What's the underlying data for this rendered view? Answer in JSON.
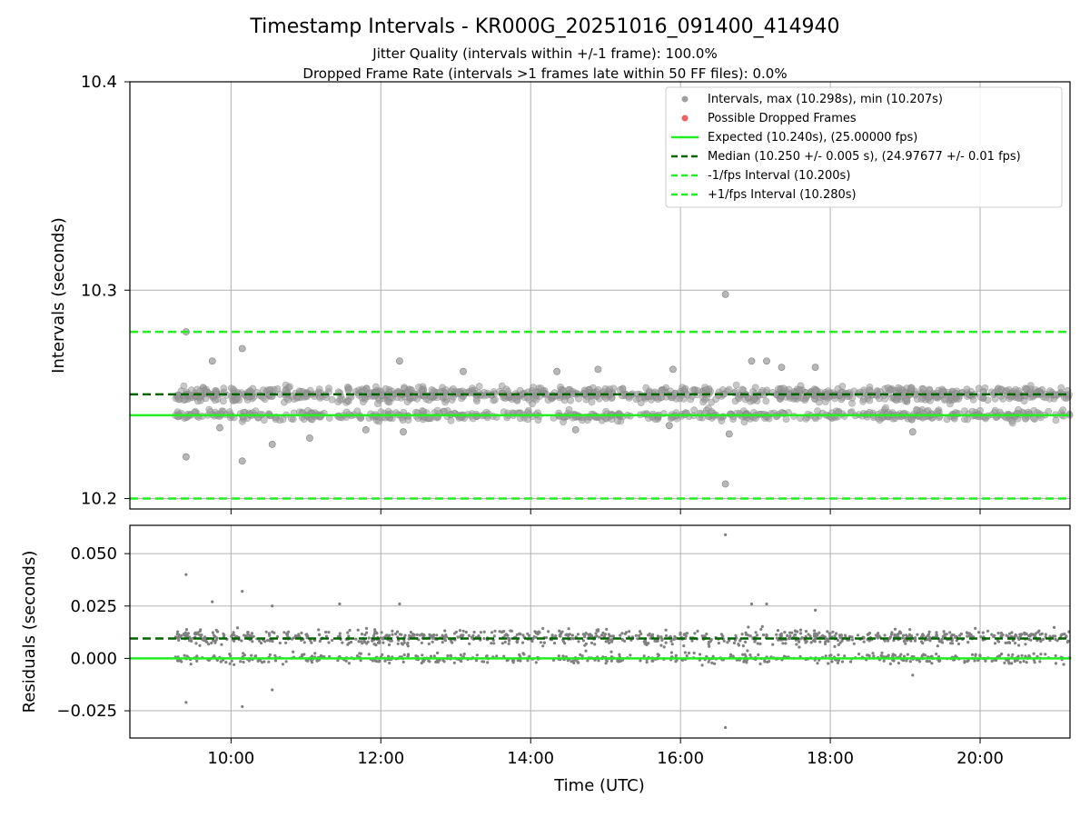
{
  "chart_data": [
    {
      "type": "scatter",
      "title": "Timestamp Intervals - KR000G_20251016_091400_414940",
      "subtitle1": "Jitter Quality (intervals within +/-1 frame): 100.0%",
      "subtitle2": "Dropped Frame Rate (intervals >1 frames late within 50 FF files): 0.0%",
      "ylabel": "Intervals (seconds)",
      "xlim": [
        8.65,
        21.2
      ],
      "ylim": [
        10.195,
        10.4
      ],
      "yticks": [
        10.2,
        10.3,
        10.4
      ],
      "ytick_labels": [
        "10.2",
        "10.3",
        "10.4"
      ],
      "grid": true,
      "legend_position": "top-right",
      "legend": [
        "Intervals, max (10.298s), min (10.207s)",
        "Possible Dropped Frames",
        "Expected (10.240s), (25.00000 fps)",
        "Median (10.250 +/- 0.005 s), (24.97677 +/- 0.01 fps)",
        "-1/fps Interval (10.200s)",
        "+1/fps Interval (10.280s)"
      ],
      "x_range": [
        9.25,
        21.2
      ],
      "bands": [
        {
          "center": 10.25,
          "spread": 0.0025
        },
        {
          "center": 10.24,
          "spread": 0.0018
        }
      ],
      "lines": {
        "expected": 10.24,
        "median": 10.25,
        "minus_interval": 10.2,
        "plus_interval": 10.28
      },
      "outliers": [
        [
          9.4,
          10.28
        ],
        [
          9.4,
          10.22
        ],
        [
          10.15,
          10.218
        ],
        [
          10.15,
          10.272
        ],
        [
          9.75,
          10.266
        ],
        [
          10.55,
          10.226
        ],
        [
          11.05,
          10.229
        ],
        [
          12.25,
          10.266
        ],
        [
          13.1,
          10.261
        ],
        [
          14.35,
          10.261
        ],
        [
          14.9,
          10.262
        ],
        [
          15.9,
          10.262
        ],
        [
          16.6,
          10.298
        ],
        [
          16.6,
          10.207
        ],
        [
          16.95,
          10.266
        ],
        [
          17.15,
          10.266
        ],
        [
          17.35,
          10.263
        ],
        [
          17.8,
          10.263
        ],
        [
          19.1,
          10.232
        ],
        [
          9.85,
          10.234
        ],
        [
          11.8,
          10.233
        ],
        [
          12.3,
          10.232
        ],
        [
          14.6,
          10.233
        ],
        [
          15.85,
          10.235
        ],
        [
          16.65,
          10.231
        ]
      ],
      "colors": {
        "points": "#808080",
        "expected": "#22ee22",
        "median": "#006400",
        "interval": "#22ee22",
        "dropped": "#f06060"
      }
    },
    {
      "type": "scatter",
      "xlabel": "Time (UTC)",
      "ylabel": "Residuals (seconds)",
      "xlim": [
        8.65,
        21.2
      ],
      "ylim": [
        -0.038,
        0.0635
      ],
      "yticks": [
        -0.025,
        0.0,
        0.025,
        0.05
      ],
      "ytick_labels": [
        "−0.025",
        "0.000",
        "0.025",
        "0.050"
      ],
      "xticks": [
        10,
        12,
        14,
        16,
        18,
        20
      ],
      "xtick_labels": [
        "10:00",
        "12:00",
        "14:00",
        "16:00",
        "18:00",
        "20:00"
      ],
      "grid": true,
      "bands": [
        {
          "center": 0.01,
          "spread": 0.0025
        },
        {
          "center": 0.0,
          "spread": 0.0018
        }
      ],
      "lines": {
        "zero": 0.0,
        "median": 0.0095
      },
      "outliers": [
        [
          9.4,
          0.04
        ],
        [
          9.4,
          -0.021
        ],
        [
          10.15,
          0.032
        ],
        [
          10.15,
          -0.023
        ],
        [
          9.75,
          0.027
        ],
        [
          10.55,
          0.025
        ],
        [
          10.55,
          -0.015
        ],
        [
          11.45,
          0.026
        ],
        [
          12.25,
          0.026
        ],
        [
          16.6,
          0.059
        ],
        [
          16.6,
          -0.033
        ],
        [
          16.95,
          0.026
        ],
        [
          17.15,
          0.026
        ],
        [
          17.8,
          0.023
        ],
        [
          19.1,
          -0.008
        ]
      ]
    }
  ]
}
